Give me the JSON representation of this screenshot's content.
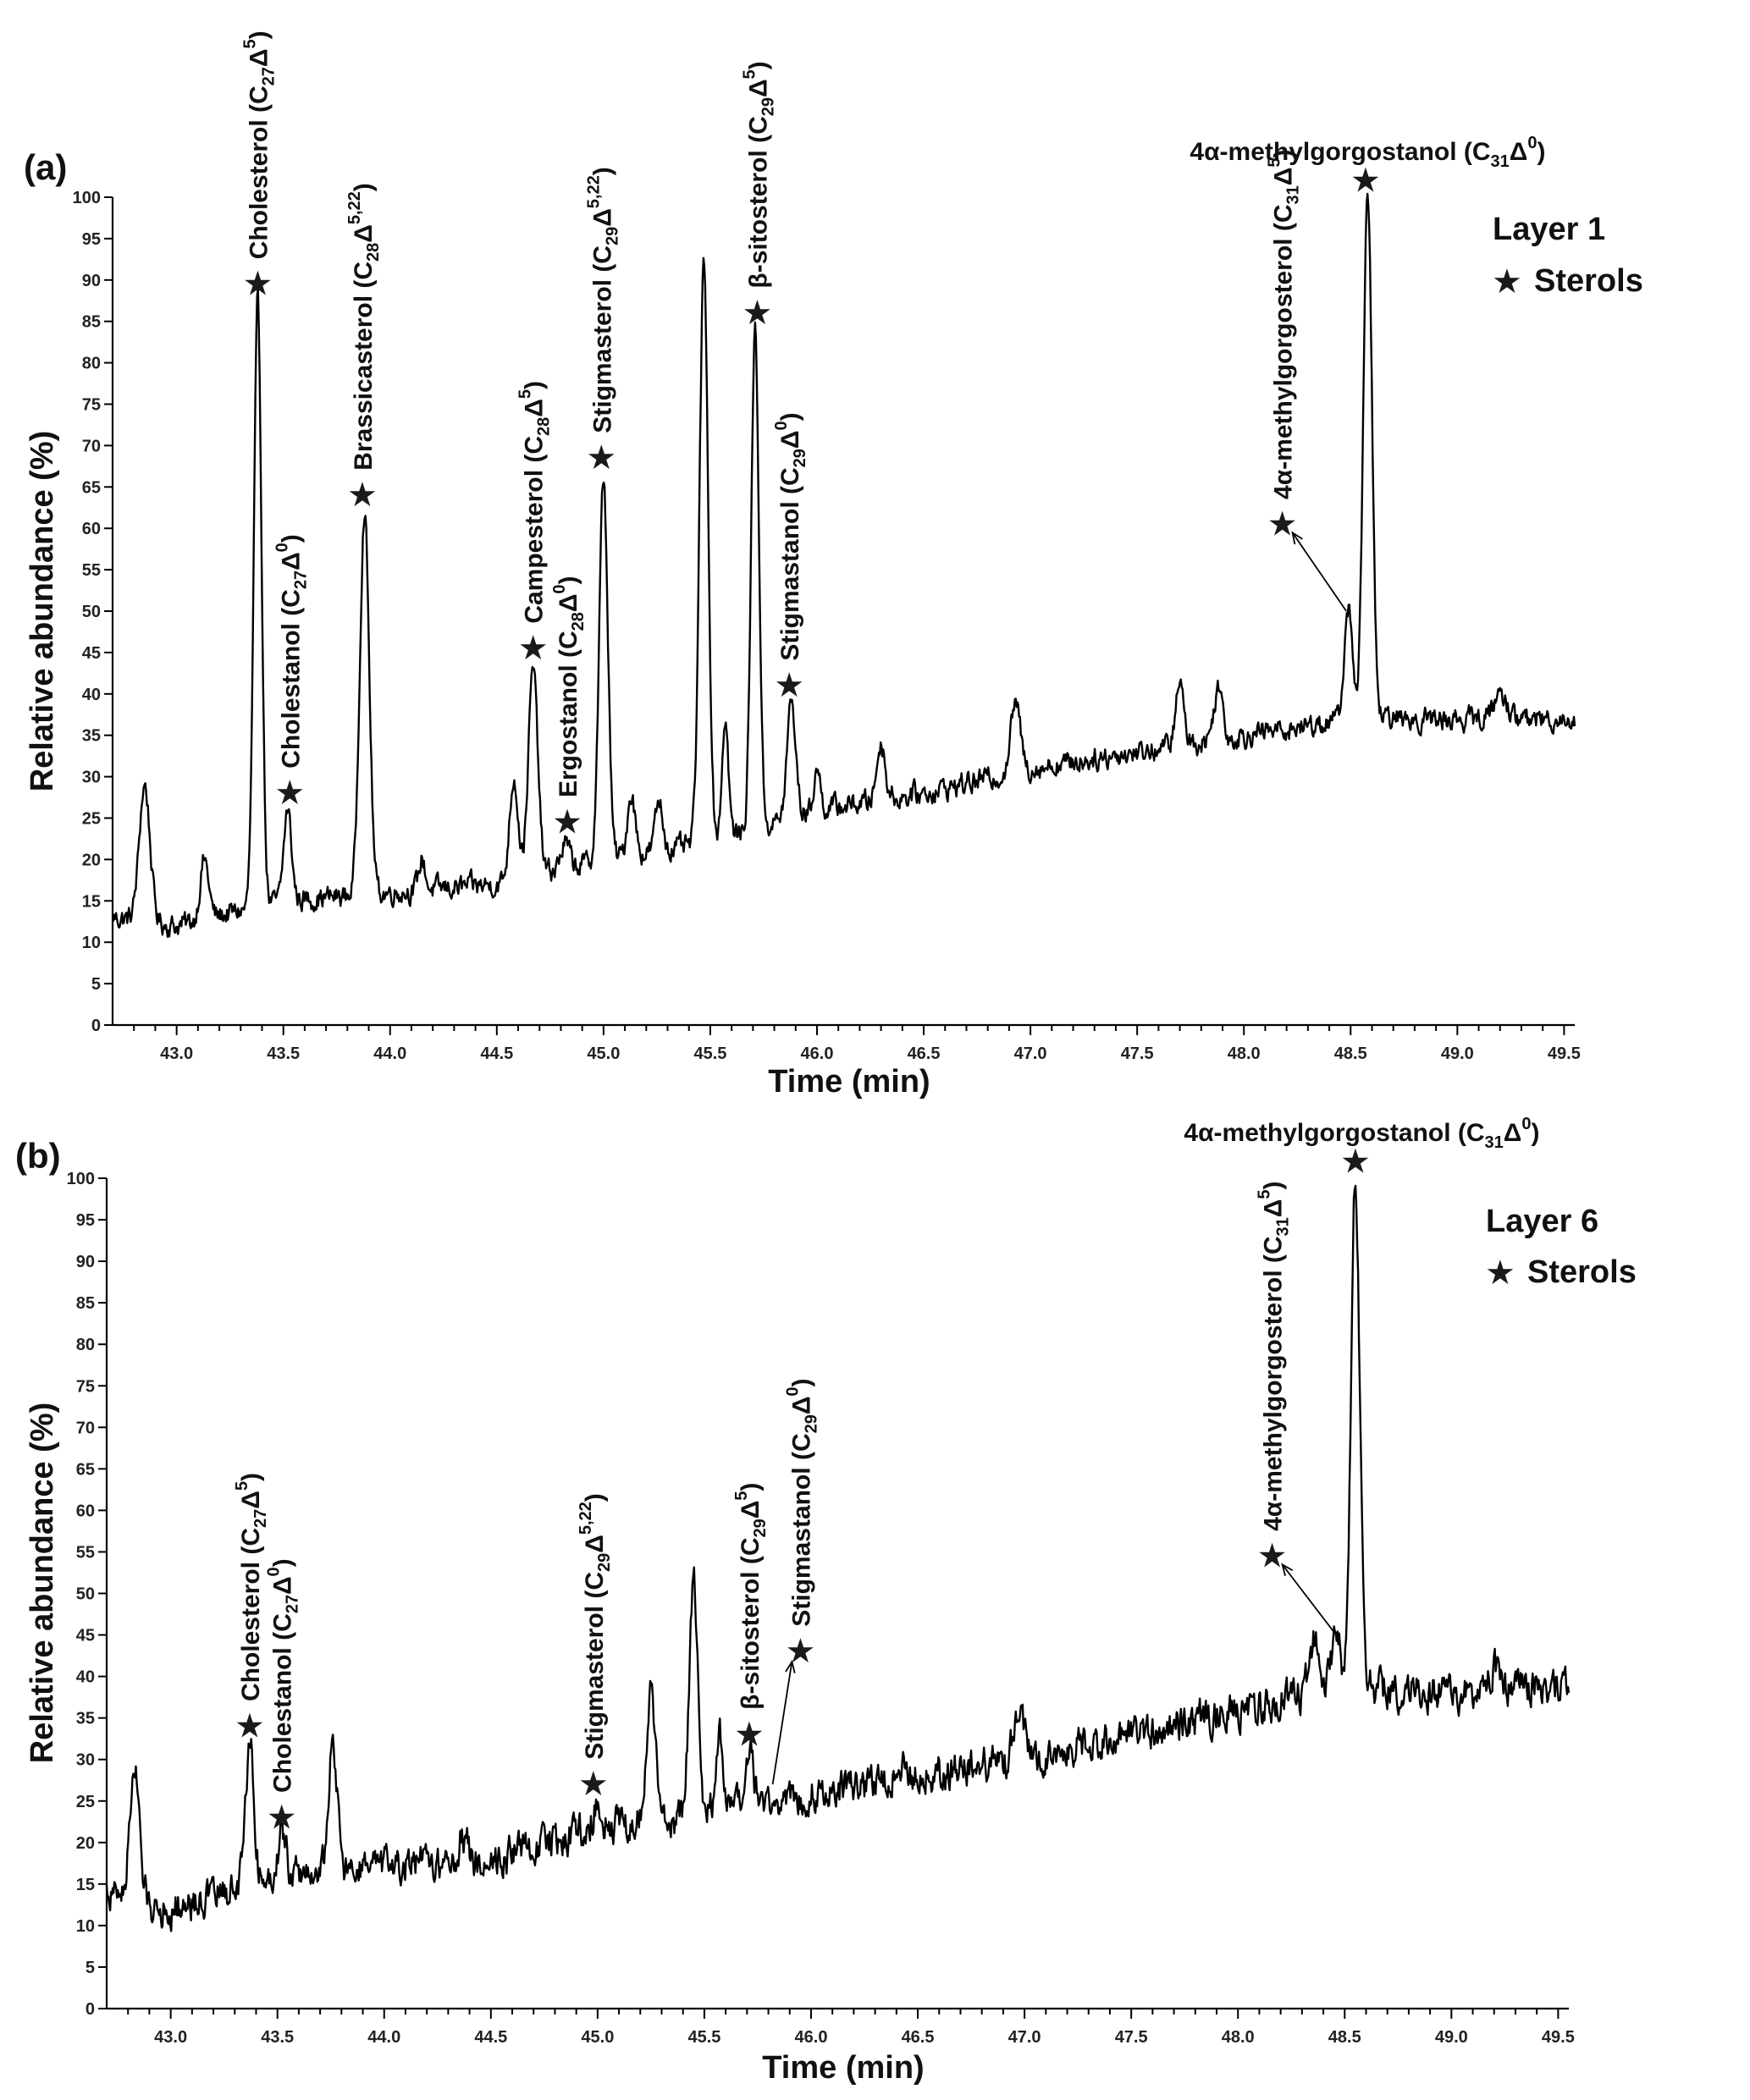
{
  "chart_data": [
    {
      "type": "line",
      "panel_label": "(a)",
      "xlabel": "Time (min)",
      "ylabel": "Relative abundance (%)",
      "xlim": [
        42.7,
        49.55
      ],
      "ylim": [
        0,
        100
      ],
      "x_ticks": [
        "43.0",
        "43.5",
        "44.0",
        "44.5",
        "45.0",
        "45.5",
        "46.0",
        "46.5",
        "47.0",
        "47.5",
        "48.0",
        "48.5",
        "49.0",
        "49.5"
      ],
      "y_ticks": [
        "0",
        "5",
        "10",
        "15",
        "20",
        "25",
        "30",
        "35",
        "40",
        "45",
        "50",
        "55",
        "60",
        "65",
        "70",
        "75",
        "80",
        "85",
        "90",
        "95",
        "100"
      ],
      "legend": {
        "line1": "Layer 1",
        "line2": "Sterols",
        "marker": "star"
      },
      "baseline": [
        [
          42.7,
          13
        ],
        [
          43.0,
          12
        ],
        [
          43.5,
          15
        ],
        [
          44.0,
          16
        ],
        [
          44.5,
          17
        ],
        [
          45.0,
          20
        ],
        [
          45.5,
          22
        ],
        [
          46.0,
          26
        ],
        [
          46.5,
          28
        ],
        [
          47.0,
          31
        ],
        [
          47.5,
          33
        ],
        [
          48.0,
          35
        ],
        [
          48.5,
          37
        ],
        [
          49.0,
          37
        ],
        [
          49.5,
          37
        ]
      ],
      "peaks": [
        {
          "x": 42.85,
          "h": 29,
          "w": 0.025
        },
        {
          "x": 43.13,
          "h": 20,
          "w": 0.02
        },
        {
          "x": 43.38,
          "h": 87,
          "w": 0.018
        },
        {
          "x": 43.52,
          "h": 26,
          "w": 0.018
        },
        {
          "x": 43.88,
          "h": 62,
          "w": 0.022
        },
        {
          "x": 44.15,
          "h": 20,
          "w": 0.015
        },
        {
          "x": 44.58,
          "h": 30,
          "w": 0.02
        },
        {
          "x": 44.67,
          "h": 43,
          "w": 0.022
        },
        {
          "x": 44.82,
          "h": 22,
          "w": 0.02
        },
        {
          "x": 45.0,
          "h": 66,
          "w": 0.02
        },
        {
          "x": 45.13,
          "h": 28,
          "w": 0.018
        },
        {
          "x": 45.26,
          "h": 27,
          "w": 0.018
        },
        {
          "x": 45.47,
          "h": 92,
          "w": 0.02
        },
        {
          "x": 45.57,
          "h": 37,
          "w": 0.015
        },
        {
          "x": 45.71,
          "h": 84,
          "w": 0.018
        },
        {
          "x": 45.88,
          "h": 39,
          "w": 0.02
        },
        {
          "x": 46.0,
          "h": 31,
          "w": 0.015
        },
        {
          "x": 46.3,
          "h": 34,
          "w": 0.02
        },
        {
          "x": 46.93,
          "h": 39,
          "w": 0.022
        },
        {
          "x": 47.7,
          "h": 41,
          "w": 0.02
        },
        {
          "x": 47.88,
          "h": 41,
          "w": 0.02
        },
        {
          "x": 48.49,
          "h": 50,
          "w": 0.02
        },
        {
          "x": 48.58,
          "h": 100,
          "w": 0.02
        },
        {
          "x": 49.2,
          "h": 40,
          "w": 0.03
        }
      ],
      "noise_amplitude": 0.5,
      "annotations": [
        {
          "text": "Cholesterol (C",
          "sub": "27",
          "mid": "Δ",
          "sup": "5",
          "star": [
            43.38,
            89.5
          ],
          "text_anchor": [
            43.38,
            92.5
          ],
          "rotate": true
        },
        {
          "text": "Cholestanol (C",
          "sub": "27",
          "mid": "Δ",
          "sup": "0",
          "star": [
            43.53,
            28
          ],
          "text_anchor": [
            43.53,
            31
          ],
          "rotate": true
        },
        {
          "text": "Brassicasterol (C",
          "sub": "28",
          "mid": "Δ",
          "sup": "5,22",
          "star": [
            43.87,
            64
          ],
          "text_anchor": [
            43.87,
            67
          ],
          "rotate": true
        },
        {
          "text": "Campesterol (C",
          "sub": "28",
          "mid": "Δ",
          "sup": "5",
          "star": [
            44.67,
            45.5
          ],
          "text_anchor": [
            44.67,
            48.5
          ],
          "rotate": true
        },
        {
          "text": "Ergostanol (C",
          "sub": "28",
          "mid": "Δ",
          "sup": "0",
          "star": [
            44.83,
            24.5
          ],
          "text_anchor": [
            44.83,
            27.5
          ],
          "rotate": true
        },
        {
          "text": "Stigmasterol (C",
          "sub": "29",
          "mid": "Δ",
          "sup": "5,22",
          "star": [
            44.99,
            68.5
          ],
          "text_anchor": [
            44.99,
            71.5
          ],
          "rotate": true
        },
        {
          "text": "β-sitosterol (C",
          "sub": "29",
          "mid": "Δ",
          "sup": "5",
          "star": [
            45.72,
            86
          ],
          "text_anchor": [
            45.72,
            89
          ],
          "rotate": true
        },
        {
          "text": "Stigmastanol (C",
          "sub": "29",
          "mid": "Δ",
          "sup": "0",
          "star": [
            45.87,
            41
          ],
          "text_anchor": [
            45.87,
            44
          ],
          "rotate": true
        },
        {
          "text": "4α-methylgorgosterol (C",
          "sub": "31",
          "mid": "Δ",
          "sup": "5",
          "star": [
            48.18,
            60.5
          ],
          "text_anchor": [
            48.18,
            63.5
          ],
          "rotate": true,
          "arrow_to": [
            48.48,
            50
          ]
        },
        {
          "text": "4α-methylgorgostanol (C",
          "sub": "31",
          "mid": "Δ",
          "sup": "0",
          "star": [
            48.57,
            102
          ],
          "text_anchor": [
            48.58,
            104.5
          ],
          "rotate": false,
          "close": ")"
        }
      ]
    },
    {
      "type": "line",
      "panel_label": "(b)",
      "xlabel": "Time (min)",
      "ylabel": "Relative abundance (%)",
      "xlim": [
        42.7,
        49.55
      ],
      "ylim": [
        0,
        100
      ],
      "x_ticks": [
        "43.0",
        "43.5",
        "44.0",
        "44.5",
        "45.0",
        "45.5",
        "46.0",
        "46.5",
        "47.0",
        "47.5",
        "48.0",
        "48.5",
        "49.0",
        "49.5"
      ],
      "y_ticks": [
        "0",
        "5",
        "10",
        "15",
        "20",
        "25",
        "30",
        "35",
        "40",
        "45",
        "50",
        "55",
        "60",
        "65",
        "70",
        "75",
        "80",
        "85",
        "90",
        "95",
        "100"
      ],
      "legend": {
        "line1": "Layer 6",
        "line2": "Sterols",
        "marker": "star"
      },
      "baseline": [
        [
          42.7,
          14
        ],
        [
          43.0,
          12
        ],
        [
          43.5,
          16
        ],
        [
          44.0,
          17
        ],
        [
          44.5,
          18
        ],
        [
          45.0,
          22
        ],
        [
          45.5,
          23
        ],
        [
          46.0,
          26
        ],
        [
          46.5,
          28
        ],
        [
          47.0,
          30
        ],
        [
          47.5,
          33
        ],
        [
          48.0,
          36
        ],
        [
          48.5,
          39
        ],
        [
          49.0,
          38
        ],
        [
          49.5,
          39
        ]
      ],
      "peaks": [
        {
          "x": 42.83,
          "h": 29,
          "w": 0.022
        },
        {
          "x": 43.37,
          "h": 32,
          "w": 0.02
        },
        {
          "x": 43.52,
          "h": 21,
          "w": 0.02
        },
        {
          "x": 43.76,
          "h": 32,
          "w": 0.02
        },
        {
          "x": 44.37,
          "h": 21,
          "w": 0.02
        },
        {
          "x": 45.0,
          "h": 25,
          "w": 0.02
        },
        {
          "x": 45.25,
          "h": 38,
          "w": 0.02
        },
        {
          "x": 45.45,
          "h": 51,
          "w": 0.02
        },
        {
          "x": 45.57,
          "h": 33,
          "w": 0.018
        },
        {
          "x": 45.71,
          "h": 31,
          "w": 0.018
        },
        {
          "x": 46.42,
          "h": 30,
          "w": 0.02
        },
        {
          "x": 46.97,
          "h": 36,
          "w": 0.025
        },
        {
          "x": 48.36,
          "h": 45,
          "w": 0.022
        },
        {
          "x": 48.46,
          "h": 45,
          "w": 0.02
        },
        {
          "x": 48.55,
          "h": 100,
          "w": 0.02
        },
        {
          "x": 49.2,
          "h": 41,
          "w": 0.03
        }
      ],
      "noise_amplitude": 0.8,
      "annotations": [
        {
          "text": "Cholesterol (C",
          "sub": "27",
          "mid": "Δ",
          "sup": "5",
          "star": [
            43.37,
            34
          ],
          "text_anchor": [
            43.37,
            37
          ],
          "rotate": true
        },
        {
          "text": "Cholestanol (C",
          "sub": "27",
          "mid": "Δ",
          "sup": "0",
          "star": [
            43.52,
            23
          ],
          "text_anchor": [
            43.52,
            26
          ],
          "rotate": true
        },
        {
          "text": "Stigmasterol (C",
          "sub": "29",
          "mid": "Δ",
          "sup": "5,22",
          "star": [
            44.98,
            27
          ],
          "text_anchor": [
            44.98,
            30
          ],
          "rotate": true
        },
        {
          "text": "β-sitosterol (C",
          "sub": "29",
          "mid": "Δ",
          "sup": "5",
          "star": [
            45.71,
            33
          ],
          "text_anchor": [
            45.71,
            36
          ],
          "rotate": true
        },
        {
          "text": "Stigmastanol (C",
          "sub": "29",
          "mid": "Δ",
          "sup": "0",
          "star": [
            45.95,
            43
          ],
          "text_anchor": [
            45.95,
            46
          ],
          "rotate": true,
          "arrow_from": [
            45.82,
            27
          ]
        },
        {
          "text": "4α-methylgorgosterol (C",
          "sub": "31",
          "mid": "Δ",
          "sup": "5",
          "star": [
            48.16,
            54.5
          ],
          "text_anchor": [
            48.16,
            57.5
          ],
          "rotate": true,
          "arrow_to": [
            48.46,
            45
          ]
        },
        {
          "text": "4α-methylgorgostanol (C",
          "sub": "31",
          "mid": "Δ",
          "sup": "0",
          "star": [
            48.55,
            102
          ],
          "text_anchor": [
            48.58,
            104.5
          ],
          "rotate": false,
          "close": ")"
        }
      ]
    }
  ]
}
